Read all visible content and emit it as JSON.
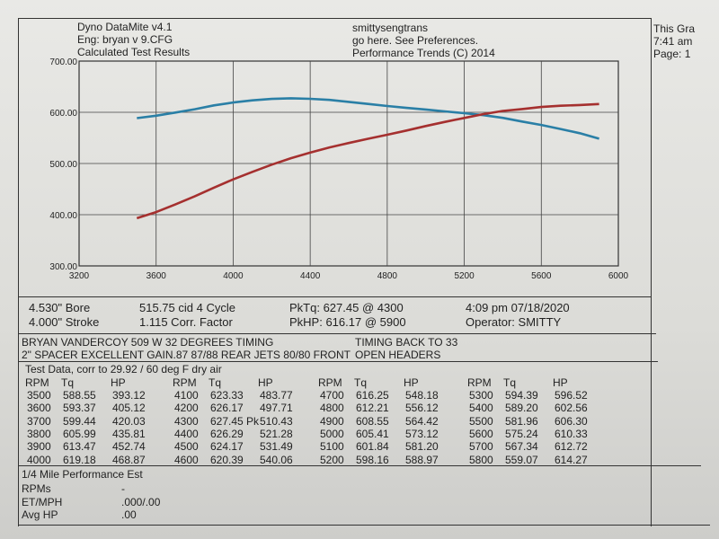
{
  "header": {
    "left": [
      "Dyno DataMite v4.1",
      "Eng: bryan v 9.CFG",
      "Calculated Test Results"
    ],
    "center": [
      "smittysengtrans",
      "go here.  See Preferences.",
      "Performance Trends (C) 2014"
    ],
    "right": [
      "This Gra",
      "7:41 am",
      "Page: 1"
    ]
  },
  "chart_data": {
    "type": "line",
    "title": "",
    "xlabel": "RPM",
    "ylabel": "",
    "xlim": [
      3200,
      6000
    ],
    "ylim": [
      300,
      700
    ],
    "xticks": [
      "3200",
      "3600",
      "4000",
      "4400",
      "4800",
      "5200",
      "5600",
      "6000"
    ],
    "yticks": [
      "300.00",
      "400.00",
      "500.00",
      "600.00",
      "700.00"
    ],
    "grid": true,
    "x": [
      3500,
      3600,
      3700,
      3800,
      3900,
      4000,
      4100,
      4200,
      4300,
      4400,
      4500,
      4600,
      4700,
      4800,
      4900,
      5000,
      5100,
      5200,
      5300,
      5400,
      5500,
      5600,
      5700,
      5800,
      5900
    ],
    "series": [
      {
        "name": "Tq",
        "color": "#2a7fa6",
        "values": [
          588.55,
          593.37,
          599.44,
          605.99,
          613.47,
          619.18,
          623.33,
          626.17,
          627.45,
          626.29,
          624.17,
          620.39,
          616.25,
          612.21,
          608.55,
          605.41,
          601.84,
          598.16,
          594.39,
          589.2,
          581.96,
          575.24,
          567.34,
          559.07,
          548.5
        ]
      },
      {
        "name": "HP",
        "color": "#a5302f",
        "values": [
          393.12,
          405.12,
          420.03,
          435.81,
          452.74,
          468.87,
          483.77,
          497.71,
          510.43,
          521.28,
          531.49,
          540.06,
          548.18,
          556.12,
          564.42,
          573.12,
          581.2,
          588.97,
          596.52,
          602.56,
          606.3,
          610.33,
          612.72,
          614.27,
          616.17
        ]
      }
    ]
  },
  "info": {
    "bore": "4.530\" Bore",
    "stroke": "4.000\" Stroke",
    "cid": "515.75 cid  4 Cycle",
    "corr": "1.115 Corr. Factor",
    "pktq": "PkTq: 627.45 @  4300",
    "pkhp": "PkHP: 616.17 @  5900",
    "datetime": "4:09 pm  07/18/2020",
    "operator": "Operator: SMITTY"
  },
  "notes": {
    "line1": "BRYAN VANDERCOY 509 W 32 DEGREES TIMING",
    "line1b": "TIMING BACK TO 33",
    "line2": "2\" SPACER EXCELLENT GAIN.87 87/88 REAR JETS 80/80 FRONT",
    "line2b": "OPEN HEADERS"
  },
  "test": {
    "title": "Test Data, corr to 29.92 / 60 deg F dry air",
    "headers": [
      "RPM",
      "Tq",
      "HP"
    ],
    "groups": [
      [
        [
          "3500",
          "588.55",
          "393.12"
        ],
        [
          "3600",
          "593.37",
          "405.12"
        ],
        [
          "3700",
          "599.44",
          "420.03"
        ],
        [
          "3800",
          "605.99",
          "435.81"
        ],
        [
          "3900",
          "613.47",
          "452.74"
        ],
        [
          "4000",
          "619.18",
          "468.87"
        ]
      ],
      [
        [
          "4100",
          "623.33",
          "483.77"
        ],
        [
          "4200",
          "626.17",
          "497.71"
        ],
        [
          "4300",
          "627.45 Pk",
          "510.43"
        ],
        [
          "4400",
          "626.29",
          "521.28"
        ],
        [
          "4500",
          "624.17",
          "531.49"
        ],
        [
          "4600",
          "620.39",
          "540.06"
        ]
      ],
      [
        [
          "4700",
          "616.25",
          "548.18"
        ],
        [
          "4800",
          "612.21",
          "556.12"
        ],
        [
          "4900",
          "608.55",
          "564.42"
        ],
        [
          "5000",
          "605.41",
          "573.12"
        ],
        [
          "5100",
          "601.84",
          "581.20"
        ],
        [
          "5200",
          "598.16",
          "588.97"
        ]
      ],
      [
        [
          "5300",
          "594.39",
          "596.52"
        ],
        [
          "5400",
          "589.20",
          "602.56"
        ],
        [
          "5500",
          "581.96",
          "606.30"
        ],
        [
          "5600",
          "575.24",
          "610.33"
        ],
        [
          "5700",
          "567.34",
          "612.72"
        ],
        [
          "5800",
          "559.07",
          "614.27"
        ]
      ]
    ]
  },
  "quarter": {
    "title": "1/4 Mile Performance Est",
    "rows": [
      [
        "RPMs",
        "-"
      ],
      [
        "ET/MPH",
        ".000/.00"
      ],
      [
        "Avg HP",
        ".00"
      ]
    ]
  }
}
